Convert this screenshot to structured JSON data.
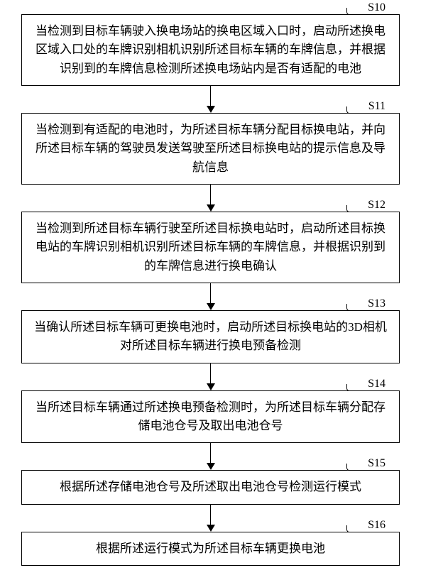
{
  "flowchart": {
    "type": "flowchart",
    "background_color": "#ffffff",
    "border_color": "#000000",
    "text_color": "#000000",
    "font_family": "SimSun",
    "box_font_size": 17,
    "label_font_size": 16,
    "box_border_width": 1.5,
    "arrow_line_width": 1.5,
    "arrowhead_size": 10,
    "steps": [
      {
        "id": "S10",
        "text": "当检测到目标车辆驶入换电场站的换电区域入口时，启动所述换电区域入口处的车牌识别相机识别所述目标车辆的车牌信息，并根据识别到的车牌信息检测所述换电场站内是否有适配的电池"
      },
      {
        "id": "S11",
        "text": "当检测到有适配的电池时，为所述目标车辆分配目标换电站，并向所述目标车辆的驾驶员发送驾驶至所述目标换电站的提示信息及导航信息"
      },
      {
        "id": "S12",
        "text": "当检测到所述目标车辆行驶至所述目标换电站时，启动所述目标换电站的车牌识别相机识别所述目标车辆的车牌信息，并根据识别到的车牌信息进行换电确认"
      },
      {
        "id": "S13",
        "text": "当确认所述目标车辆可更换电池时，启动所述目标换电站的3D相机对所述目标车辆进行换电预备检测"
      },
      {
        "id": "S14",
        "text": "当所述目标车辆通过所述换电预备检测时，为所述目标车辆分配存储电池仓号及取出电池仓号"
      },
      {
        "id": "S15",
        "text": "根据所述存储电池仓号及所述取出电池仓号检测运行模式"
      },
      {
        "id": "S16",
        "text": "根据所述运行模式为所述目标车辆更换电池"
      }
    ]
  }
}
